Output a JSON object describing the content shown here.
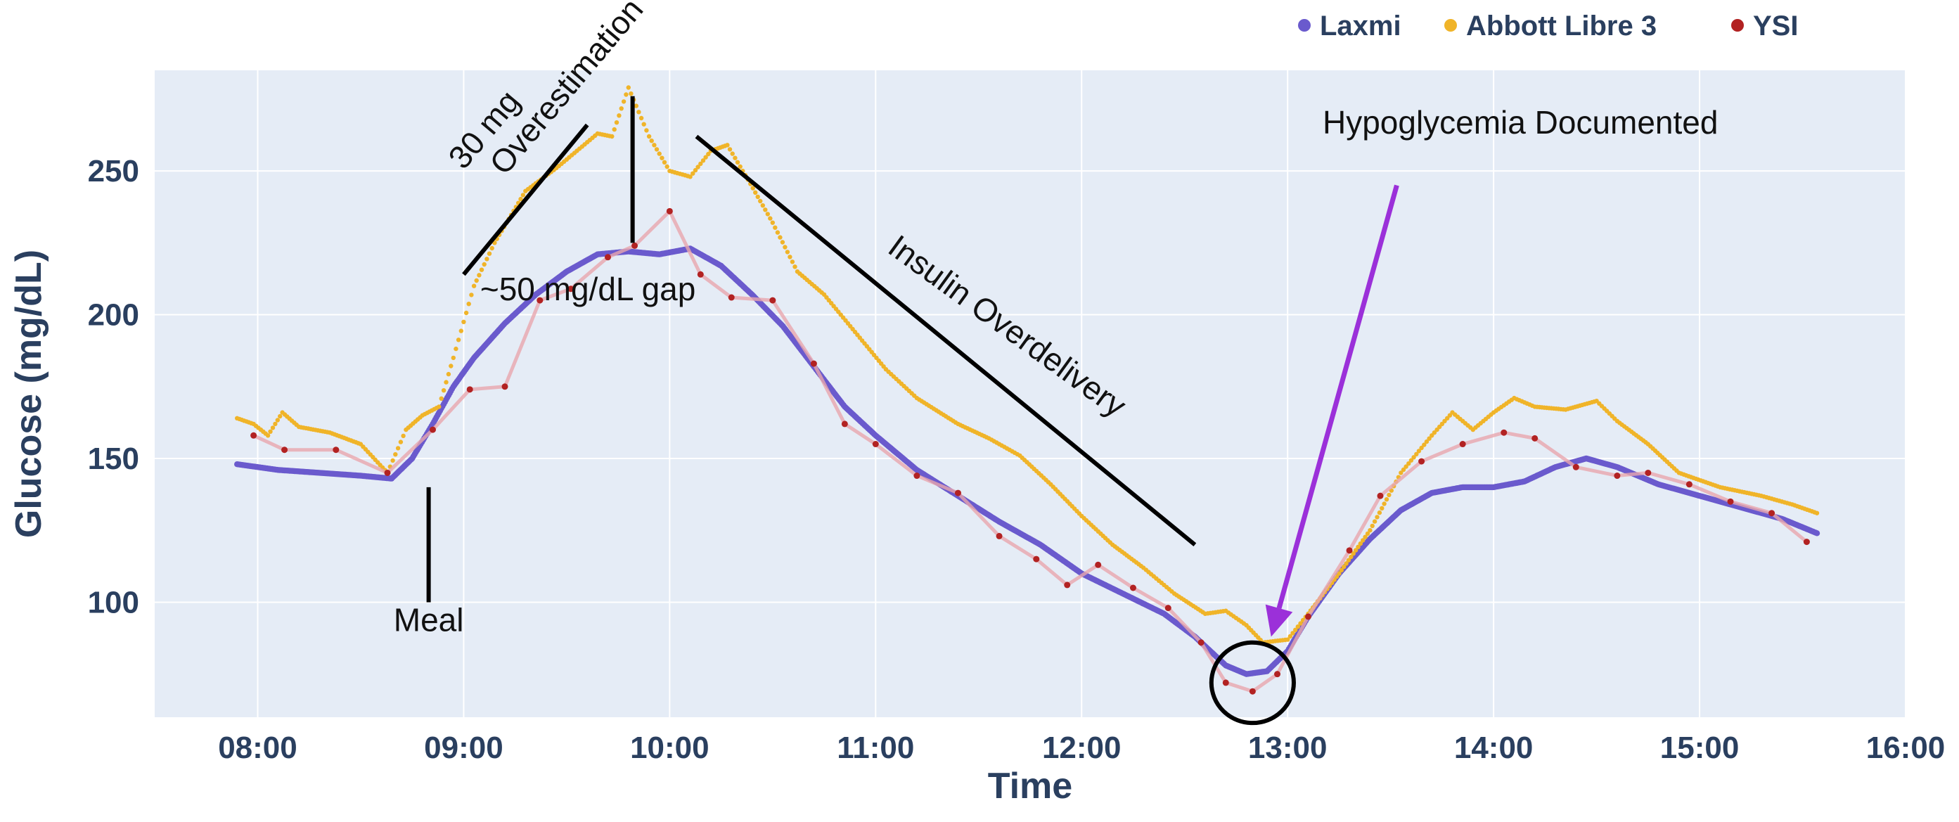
{
  "chart_data": {
    "type": "line",
    "xlabel": "Time",
    "ylabel": "Glucose (mg/dL)",
    "x_unit": "hours (time of day)",
    "xlim": [
      7.5,
      16.0
    ],
    "ylim": [
      60,
      285
    ],
    "x_ticks": [
      {
        "v": 8,
        "label": "08:00"
      },
      {
        "v": 9,
        "label": "09:00"
      },
      {
        "v": 10,
        "label": "10:00"
      },
      {
        "v": 11,
        "label": "11:00"
      },
      {
        "v": 12,
        "label": "12:00"
      },
      {
        "v": 13,
        "label": "13:00"
      },
      {
        "v": 14,
        "label": "14:00"
      },
      {
        "v": 15,
        "label": "15:00"
      },
      {
        "v": 16,
        "label": "16:00"
      }
    ],
    "y_ticks": [
      {
        "v": 100,
        "label": "100"
      },
      {
        "v": 150,
        "label": "150"
      },
      {
        "v": 200,
        "label": "200"
      },
      {
        "v": 250,
        "label": "250"
      }
    ],
    "grid": true,
    "legend_position": "top-right",
    "series": [
      {
        "name": "Laxmi",
        "color": "#6a5acd",
        "points": [
          [
            7.9,
            148
          ],
          [
            8.1,
            146
          ],
          [
            8.3,
            145
          ],
          [
            8.5,
            144
          ],
          [
            8.65,
            143
          ],
          [
            8.75,
            150
          ],
          [
            8.85,
            162
          ],
          [
            8.95,
            175
          ],
          [
            9.05,
            185
          ],
          [
            9.2,
            197
          ],
          [
            9.35,
            207
          ],
          [
            9.5,
            215
          ],
          [
            9.65,
            221
          ],
          [
            9.8,
            222
          ],
          [
            9.95,
            221
          ],
          [
            10.1,
            223
          ],
          [
            10.25,
            217
          ],
          [
            10.4,
            207
          ],
          [
            10.55,
            196
          ],
          [
            10.7,
            182
          ],
          [
            10.85,
            168
          ],
          [
            11.0,
            158
          ],
          [
            11.2,
            146
          ],
          [
            11.4,
            137
          ],
          [
            11.6,
            128
          ],
          [
            11.8,
            120
          ],
          [
            12.0,
            110
          ],
          [
            12.2,
            103
          ],
          [
            12.4,
            96
          ],
          [
            12.55,
            88
          ],
          [
            12.7,
            78
          ],
          [
            12.8,
            75
          ],
          [
            12.9,
            76
          ],
          [
            13.0,
            83
          ],
          [
            13.1,
            95
          ],
          [
            13.25,
            110
          ],
          [
            13.4,
            122
          ],
          [
            13.55,
            132
          ],
          [
            13.7,
            138
          ],
          [
            13.85,
            140
          ],
          [
            14.0,
            140
          ],
          [
            14.15,
            142
          ],
          [
            14.3,
            147
          ],
          [
            14.45,
            150
          ],
          [
            14.6,
            147
          ],
          [
            14.8,
            141
          ],
          [
            15.0,
            137
          ],
          [
            15.2,
            133
          ],
          [
            15.4,
            129
          ],
          [
            15.57,
            124
          ]
        ]
      },
      {
        "name": "Abbott Libre 3",
        "color": "#f0b429",
        "points": [
          [
            7.9,
            164
          ],
          [
            7.98,
            162
          ],
          [
            8.05,
            158
          ],
          [
            8.12,
            166
          ],
          [
            8.2,
            161
          ],
          [
            8.35,
            159
          ],
          [
            8.5,
            155
          ],
          [
            8.63,
            145
          ],
          [
            8.72,
            160
          ],
          [
            8.8,
            165
          ],
          [
            8.88,
            168
          ],
          [
            8.95,
            185
          ],
          [
            9.05,
            210
          ],
          [
            9.15,
            225
          ],
          [
            9.3,
            243
          ],
          [
            9.45,
            251
          ],
          [
            9.55,
            257
          ],
          [
            9.65,
            263
          ],
          [
            9.72,
            262
          ],
          [
            9.8,
            279
          ],
          [
            9.9,
            262
          ],
          [
            10.0,
            250
          ],
          [
            10.1,
            248
          ],
          [
            10.2,
            257
          ],
          [
            10.28,
            259
          ],
          [
            10.38,
            247
          ],
          [
            10.5,
            232
          ],
          [
            10.62,
            215
          ],
          [
            10.75,
            207
          ],
          [
            10.9,
            194
          ],
          [
            11.05,
            181
          ],
          [
            11.2,
            171
          ],
          [
            11.4,
            162
          ],
          [
            11.55,
            157
          ],
          [
            11.7,
            151
          ],
          [
            11.85,
            141
          ],
          [
            12.0,
            130
          ],
          [
            12.15,
            120
          ],
          [
            12.3,
            112
          ],
          [
            12.45,
            103
          ],
          [
            12.6,
            96
          ],
          [
            12.7,
            97
          ],
          [
            12.8,
            92
          ],
          [
            12.88,
            86
          ],
          [
            13.0,
            87
          ],
          [
            13.1,
            96
          ],
          [
            13.25,
            110
          ],
          [
            13.4,
            125
          ],
          [
            13.55,
            145
          ],
          [
            13.7,
            158
          ],
          [
            13.8,
            166
          ],
          [
            13.9,
            160
          ],
          [
            14.0,
            166
          ],
          [
            14.1,
            171
          ],
          [
            14.2,
            168
          ],
          [
            14.35,
            167
          ],
          [
            14.5,
            170
          ],
          [
            14.6,
            163
          ],
          [
            14.75,
            155
          ],
          [
            14.9,
            145
          ],
          [
            15.1,
            140
          ],
          [
            15.3,
            137
          ],
          [
            15.45,
            134
          ],
          [
            15.57,
            131
          ]
        ]
      },
      {
        "name": "YSI",
        "color": "#b22222",
        "points": [
          [
            7.98,
            158
          ],
          [
            8.13,
            153
          ],
          [
            8.38,
            153
          ],
          [
            8.63,
            145
          ],
          [
            8.85,
            160
          ],
          [
            9.03,
            174
          ],
          [
            9.2,
            175
          ],
          [
            9.37,
            205
          ],
          [
            9.52,
            209
          ],
          [
            9.7,
            220
          ],
          [
            9.83,
            224
          ],
          [
            10.0,
            236
          ],
          [
            10.15,
            214
          ],
          [
            10.3,
            206
          ],
          [
            10.5,
            205
          ],
          [
            10.7,
            183
          ],
          [
            10.85,
            162
          ],
          [
            11.0,
            155
          ],
          [
            11.2,
            144
          ],
          [
            11.4,
            138
          ],
          [
            11.6,
            123
          ],
          [
            11.78,
            115
          ],
          [
            11.93,
            106
          ],
          [
            12.08,
            113
          ],
          [
            12.25,
            105
          ],
          [
            12.42,
            98
          ],
          [
            12.58,
            86
          ],
          [
            12.7,
            72
          ],
          [
            12.83,
            69
          ],
          [
            12.95,
            75
          ],
          [
            13.1,
            95
          ],
          [
            13.3,
            118
          ],
          [
            13.45,
            137
          ],
          [
            13.65,
            149
          ],
          [
            13.85,
            155
          ],
          [
            14.05,
            159
          ],
          [
            14.2,
            157
          ],
          [
            14.4,
            147
          ],
          [
            14.6,
            144
          ],
          [
            14.75,
            145
          ],
          [
            14.95,
            141
          ],
          [
            15.15,
            135
          ],
          [
            15.35,
            131
          ],
          [
            15.52,
            121
          ]
        ]
      }
    ],
    "annotations": [
      {
        "id": "meal",
        "text": "Meal",
        "x": 8.83,
        "y": 90
      },
      {
        "id": "gap",
        "text": "~50 mg/dL gap",
        "x": 9.08,
        "y": 205
      },
      {
        "id": "overestimation-line1",
        "text": "30 mg",
        "x": 9.0,
        "y": 250,
        "angle": -50
      },
      {
        "id": "overestimation-line2",
        "text": "Overestimation",
        "x": 9.2,
        "y": 248,
        "angle": -50
      },
      {
        "id": "insulin",
        "text": "Insulin Overdelivery",
        "x": 11.05,
        "y": 222,
        "angle": 36
      },
      {
        "id": "hypo",
        "text": "Hypoglycemia Documented",
        "x": 13.17,
        "y": 263
      }
    ],
    "annotation_lines": [
      {
        "x1": 8.83,
        "y1": 100,
        "x2": 8.83,
        "y2": 140
      },
      {
        "x1": 9.0,
        "y1": 214,
        "x2": 9.6,
        "y2": 266
      },
      {
        "x1": 9.82,
        "y1": 225,
        "x2": 9.82,
        "y2": 276
      },
      {
        "x1": 10.13,
        "y1": 262,
        "x2": 12.55,
        "y2": 120
      }
    ],
    "arrow": {
      "x1": 13.53,
      "y1": 245,
      "x2": 12.92,
      "y2": 88,
      "color": "#9b30d9"
    },
    "highlight_ellipse": {
      "cx": 12.83,
      "cy": 72,
      "rx": 0.2,
      "ry": 14
    }
  }
}
